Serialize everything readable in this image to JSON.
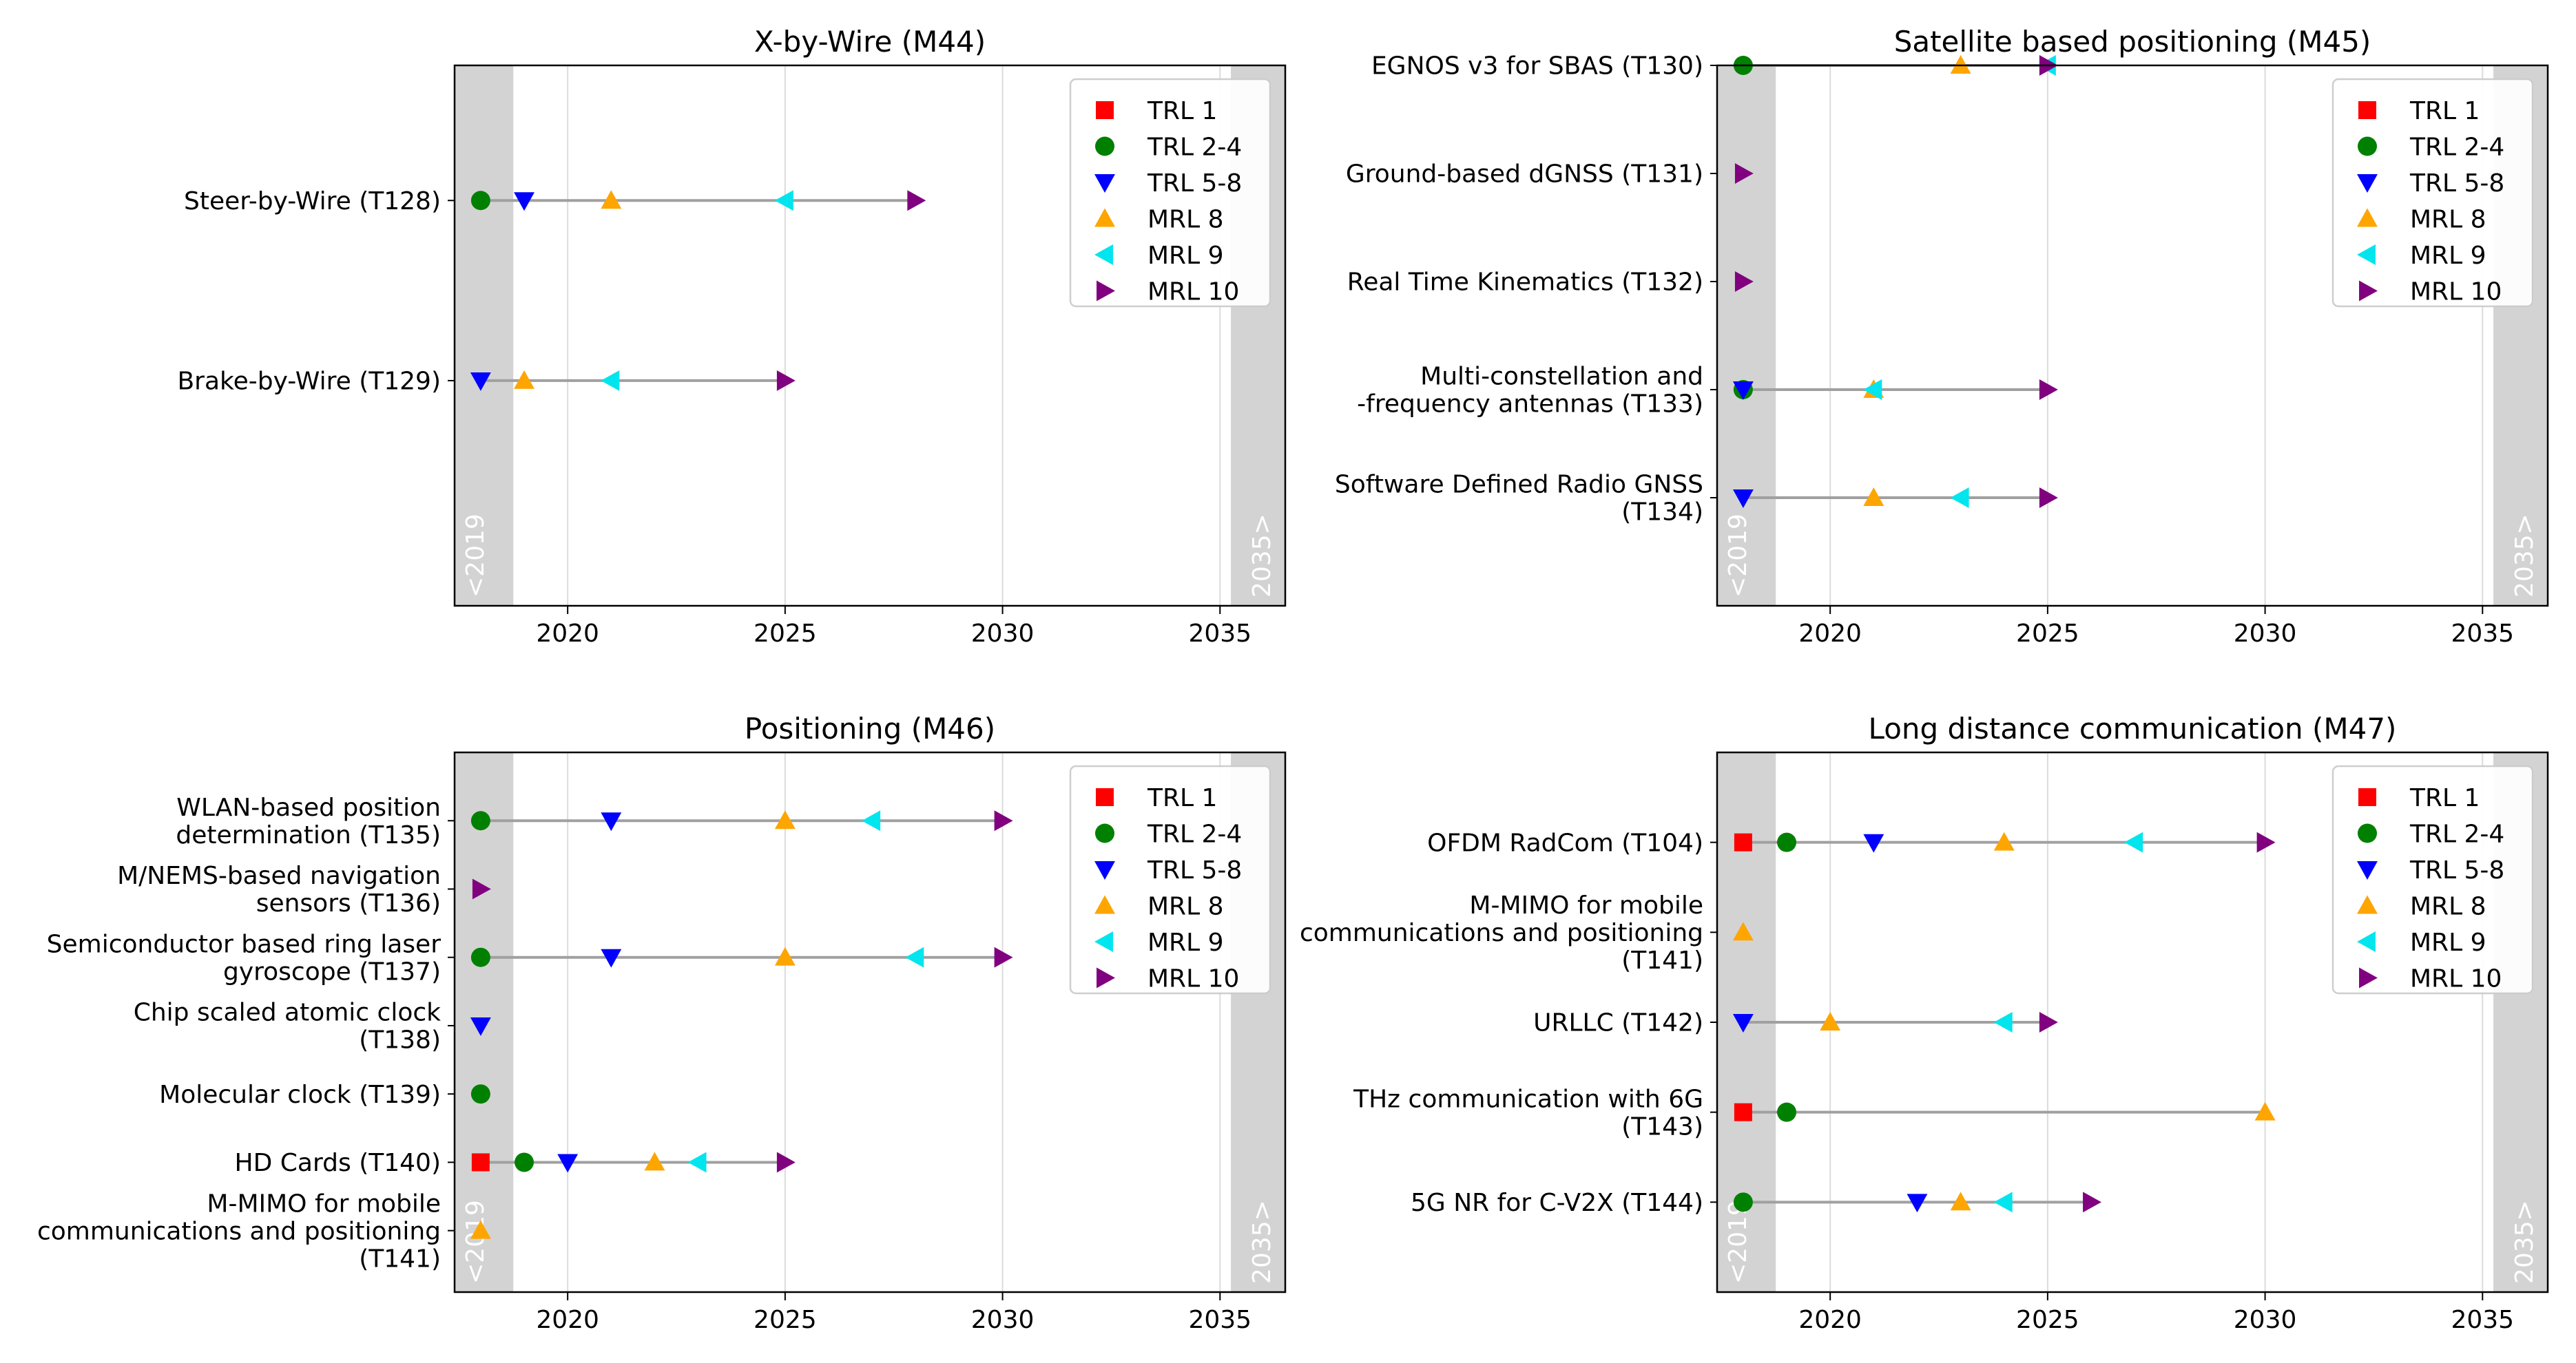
{
  "chart_data": [
    {
      "type": "scatter",
      "title": "X-by-Wire (M44)",
      "xlabel": "",
      "ylabel": "",
      "xlim": [
        2017.4,
        2036.5
      ],
      "xticks": [
        2020,
        2025,
        2030,
        2035
      ],
      "grid": "vertical",
      "legend": "top-right",
      "band_labels": {
        "left": "<2019",
        "right": "2035>"
      },
      "ylim": [
        -0.25,
        2.75
      ],
      "rows": [
        {
          "label": [
            "Steer-by-Wire (T128)"
          ],
          "y": 2,
          "points": {
            "TRL 2-4": 2018,
            "TRL 5-8": 2019,
            "MRL 8": 2021,
            "MRL 9": 2025,
            "MRL 10": 2028
          }
        },
        {
          "label": [
            "Brake-by-Wire (T129)"
          ],
          "y": 1,
          "points": {
            "TRL 5-8": 2018,
            "MRL 8": 2019,
            "MRL 9": 2021,
            "MRL 10": 2025
          }
        }
      ]
    },
    {
      "type": "scatter",
      "title": "Satellite based positioning (M45)",
      "xlabel": "",
      "ylabel": "",
      "xlim": [
        2017.4,
        2036.5
      ],
      "xticks": [
        2020,
        2025,
        2030,
        2035
      ],
      "grid": "vertical",
      "legend": "top-right",
      "band_labels": {
        "left": "<2019",
        "right": "2035>"
      },
      "ylim": [
        -0.0,
        5.0
      ],
      "rows": [
        {
          "label": [
            "EGNOS v3 for SBAS (T130)"
          ],
          "y": 5,
          "points": {
            "TRL 2-4": 2018,
            "MRL 8": 2023,
            "MRL 9": 2025,
            "MRL 10": 2025
          }
        },
        {
          "label": [
            "Ground-based dGNSS (T131)"
          ],
          "y": 4,
          "points": {
            "MRL 10": 2018
          }
        },
        {
          "label": [
            "Real Time Kinematics (T132)"
          ],
          "y": 3,
          "points": {
            "MRL 10": 2018
          }
        },
        {
          "label": [
            "Multi-constellation and",
            "-frequency antennas (T133)"
          ],
          "y": 2,
          "points": {
            "TRL 2-4": 2018,
            "TRL 5-8": 2018,
            "MRL 8": 2021,
            "MRL 9": 2021,
            "MRL 10": 2025
          }
        },
        {
          "label": [
            "Software Defined Radio GNSS",
            "(T134)"
          ],
          "y": 1,
          "points": {
            "TRL 5-8": 2018,
            "MRL 8": 2021,
            "MRL 9": 2023,
            "MRL 10": 2025
          }
        }
      ]
    },
    {
      "type": "scatter",
      "title": "Positioning (M46)",
      "xlabel": "",
      "ylabel": "",
      "xlim": [
        2017.4,
        2036.5
      ],
      "xticks": [
        2020,
        2025,
        2030,
        2035
      ],
      "grid": "vertical",
      "legend": "top-right",
      "band_labels": {
        "left": "<2019",
        "right": "2035>"
      },
      "ylim": [
        0.1,
        8.0
      ],
      "rows": [
        {
          "label": [
            "WLAN-based position",
            "determination (T135)"
          ],
          "y": 7,
          "points": {
            "TRL 2-4": 2018,
            "TRL 5-8": 2021,
            "MRL 8": 2025,
            "MRL 9": 2027,
            "MRL 10": 2030
          }
        },
        {
          "label": [
            "M/NEMS-based navigation",
            "sensors (T136)"
          ],
          "y": 6,
          "points": {
            "MRL 10": 2018
          }
        },
        {
          "label": [
            "Semiconductor based ring laser",
            "gyroscope (T137)"
          ],
          "y": 5,
          "points": {
            "TRL 2-4": 2018,
            "TRL 5-8": 2021,
            "MRL 8": 2025,
            "MRL 9": 2028,
            "MRL 10": 2030
          }
        },
        {
          "label": [
            "Chip scaled atomic clock",
            "(T138)"
          ],
          "y": 4,
          "points": {
            "TRL 5-8": 2018
          }
        },
        {
          "label": [
            "Molecular clock (T139)"
          ],
          "y": 3,
          "points": {
            "TRL 2-4": 2018
          }
        },
        {
          "label": [
            "HD Cards (T140)"
          ],
          "y": 2,
          "points": {
            "TRL 1": 2018,
            "TRL 2-4": 2019,
            "TRL 5-8": 2020,
            "MRL 8": 2022,
            "MRL 9": 2023,
            "MRL 10": 2025
          }
        },
        {
          "label": [
            "M-MIMO for mobile",
            "communications and positioning",
            "(T141)"
          ],
          "y": 1,
          "points": {
            "MRL 8": 2018
          }
        }
      ]
    },
    {
      "type": "scatter",
      "title": "Long distance communication (M47)",
      "xlabel": "",
      "ylabel": "",
      "xlim": [
        2017.4,
        2036.5
      ],
      "xticks": [
        2020,
        2025,
        2030,
        2035
      ],
      "grid": "vertical",
      "legend": "top-right",
      "band_labels": {
        "left": "<2019",
        "right": "2035>"
      },
      "ylim": [
        0.0,
        6.0
      ],
      "rows": [
        {
          "label": [
            "OFDM RadCom (T104)"
          ],
          "y": 5,
          "points": {
            "TRL 1": 2018,
            "TRL 2-4": 2019,
            "TRL 5-8": 2021,
            "MRL 8": 2024,
            "MRL 9": 2027,
            "MRL 10": 2030
          }
        },
        {
          "label": [
            "M-MIMO for mobile",
            "communications and positioning",
            "(T141)"
          ],
          "y": 4,
          "points": {
            "MRL 8": 2018
          }
        },
        {
          "label": [
            "URLLC (T142)"
          ],
          "y": 3,
          "points": {
            "TRL 5-8": 2018,
            "MRL 8": 2020,
            "MRL 9": 2024,
            "MRL 10": 2025
          }
        },
        {
          "label": [
            "THz communication with 6G",
            "(T143)"
          ],
          "y": 2,
          "points": {
            "TRL 1": 2018,
            "TRL 2-4": 2019,
            "MRL 8": 2030
          }
        },
        {
          "label": [
            "5G NR for C-V2X (T144)"
          ],
          "y": 1,
          "points": {
            "TRL 2-4": 2018,
            "TRL 5-8": 2022,
            "MRL 8": 2023,
            "MRL 9": 2024,
            "MRL 10": 2026
          }
        }
      ]
    }
  ],
  "legend": [
    {
      "name": "TRL 1",
      "color": "#ff0000",
      "marker": "square"
    },
    {
      "name": "TRL 2-4",
      "color": "#008000",
      "marker": "circle"
    },
    {
      "name": "TRL 5-8",
      "color": "#0000ff",
      "marker": "triangle-down"
    },
    {
      "name": "MRL 8",
      "color": "#ffa500",
      "marker": "triangle-up"
    },
    {
      "name": "MRL 9",
      "color": "#00e5ee",
      "marker": "triangle-left"
    },
    {
      "name": "MRL 10",
      "color": "#800080",
      "marker": "triangle-right"
    }
  ],
  "colors": {
    "connector": "#a0a0a0",
    "band": "#d3d3d3",
    "grid": "#dcdcdc"
  }
}
